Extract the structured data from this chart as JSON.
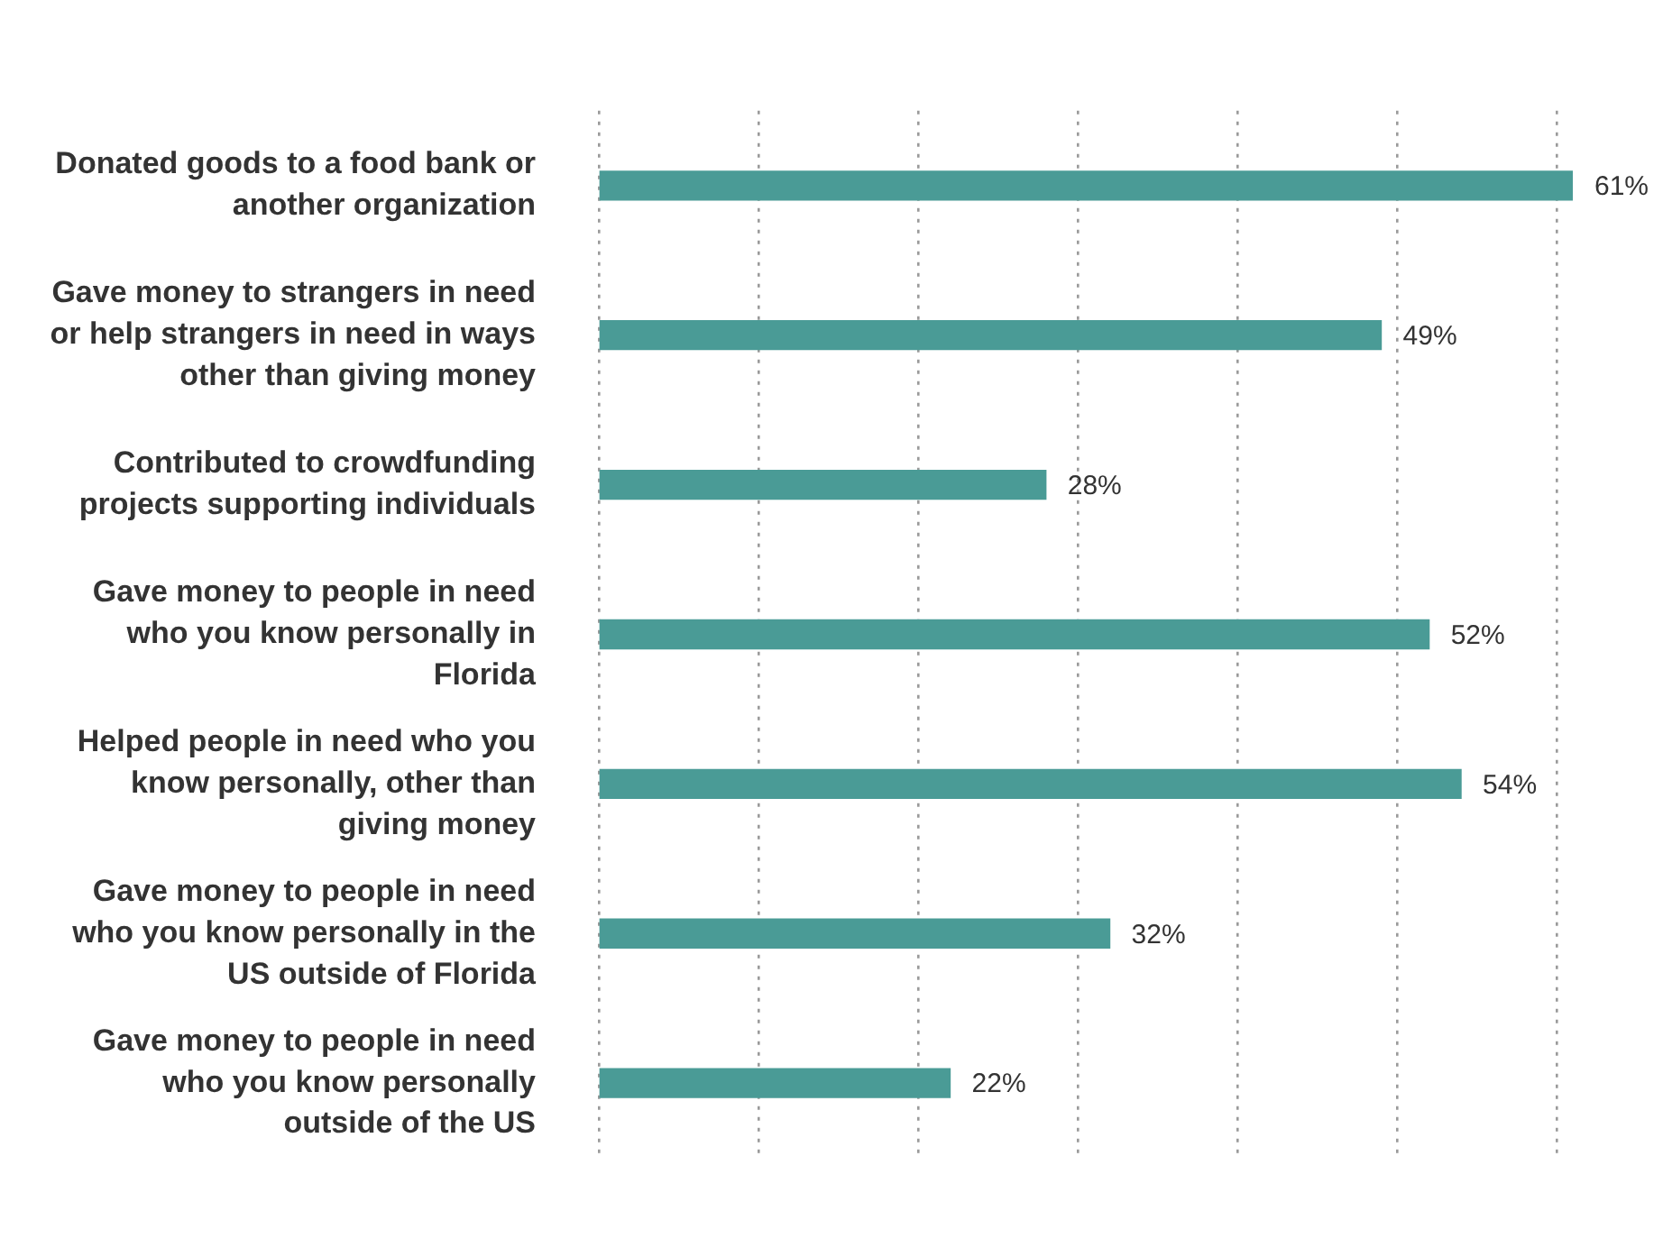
{
  "chart_data": {
    "type": "bar",
    "orientation": "horizontal",
    "categories": [
      "Donated goods to a food bank or another organization",
      "Gave money to strangers in need or help strangers in need in ways other than giving money",
      "Contributed to crowdfunding projects supporting individuals",
      "Gave money to people in need who you know personally in Florida",
      "Helped people in need who you know personally, other than giving money",
      "Gave money to people in need who you know personally in the US outside of Florida",
      "Gave money to people in need who you know personally outside of the US"
    ],
    "values": [
      61,
      49,
      28,
      52,
      54,
      32,
      22
    ],
    "value_labels": [
      "61%",
      "49%",
      "28%",
      "52%",
      "54%",
      "32%",
      "22%"
    ],
    "color": "#4a9b96",
    "xticks": [
      {
        "value": 0,
        "label": null
      },
      {
        "value": 10,
        "label": null
      },
      {
        "value": 20,
        "label": null
      },
      {
        "value": 30,
        "label": null
      },
      {
        "value": 40,
        "label": null
      },
      {
        "value": 50,
        "label": null
      },
      {
        "value": 60,
        "label": null
      }
    ],
    "grid": "x",
    "tick_labels": false,
    "legend": false
  }
}
